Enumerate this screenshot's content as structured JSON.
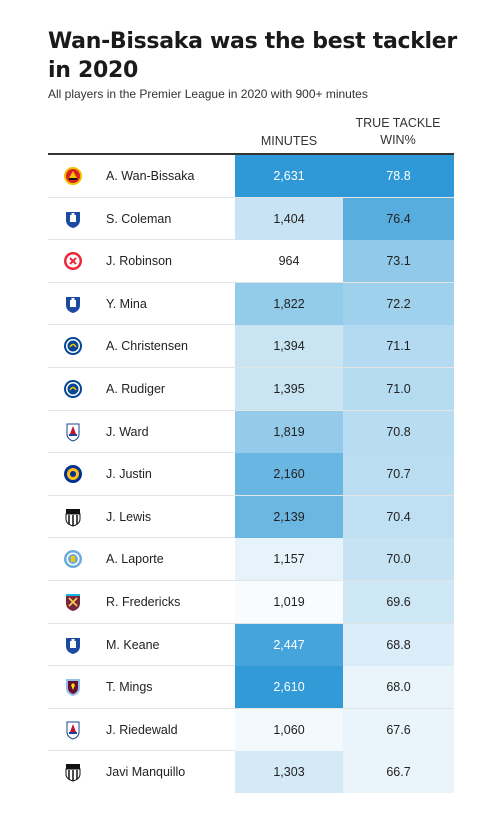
{
  "title": "Wan-Bissaka was the best tackler in 2020",
  "subtitle": "All players in the Premier League in 2020 with 900+ minutes",
  "columns": {
    "minutes": "MINUTES",
    "tackle_line1": "TRUE TACKLE",
    "tackle_line2": "WIN%"
  },
  "colors": {
    "scale_low": "#ffffff",
    "scale_high": "#2e99d6",
    "text_dark": "#222222",
    "text_light": "#ffffff"
  },
  "chart_data": {
    "type": "table",
    "title": "Wan-Bissaka was the best tackler in 2020",
    "subtitle": "All players in the Premier League in 2020 with 900+ minutes",
    "columns": [
      "",
      "MINUTES",
      "TRUE TACKLE WIN%"
    ],
    "minutes_range": [
      964,
      2631
    ],
    "tackle_range": [
      66.7,
      78.8
    ],
    "rows": [
      {
        "club_icon": "manchester-united-crest",
        "player": "A. Wan-Bissaka",
        "minutes": "2,631",
        "minutes_value": 2631,
        "tackle_win": "78.8",
        "tackle_value": 78.8
      },
      {
        "club_icon": "everton-crest",
        "player": "S. Coleman",
        "minutes": "1,404",
        "minutes_value": 1404,
        "tackle_win": "76.4",
        "tackle_value": 76.4
      },
      {
        "club_icon": "sheffield-united-crest",
        "player": "J. Robinson",
        "minutes": "964",
        "minutes_value": 964,
        "tackle_win": "73.1",
        "tackle_value": 73.1
      },
      {
        "club_icon": "everton-crest",
        "player": "Y. Mina",
        "minutes": "1,822",
        "minutes_value": 1822,
        "tackle_win": "72.2",
        "tackle_value": 72.2
      },
      {
        "club_icon": "chelsea-crest",
        "player": "A. Christensen",
        "minutes": "1,394",
        "minutes_value": 1394,
        "tackle_win": "71.1",
        "tackle_value": 71.1
      },
      {
        "club_icon": "chelsea-crest",
        "player": "A. Rudiger",
        "minutes": "1,395",
        "minutes_value": 1395,
        "tackle_win": "71.0",
        "tackle_value": 71.0
      },
      {
        "club_icon": "crystal-palace-crest",
        "player": "J. Ward",
        "minutes": "1,819",
        "minutes_value": 1819,
        "tackle_win": "70.8",
        "tackle_value": 70.8
      },
      {
        "club_icon": "leicester-city-crest",
        "player": "J. Justin",
        "minutes": "2,160",
        "minutes_value": 2160,
        "tackle_win": "70.7",
        "tackle_value": 70.7
      },
      {
        "club_icon": "newcastle-united-crest",
        "player": "J. Lewis",
        "minutes": "2,139",
        "minutes_value": 2139,
        "tackle_win": "70.4",
        "tackle_value": 70.4
      },
      {
        "club_icon": "manchester-city-crest",
        "player": "A. Laporte",
        "minutes": "1,157",
        "minutes_value": 1157,
        "tackle_win": "70.0",
        "tackle_value": 70.0
      },
      {
        "club_icon": "west-ham-crest",
        "player": "R. Fredericks",
        "minutes": "1,019",
        "minutes_value": 1019,
        "tackle_win": "69.6",
        "tackle_value": 69.6
      },
      {
        "club_icon": "everton-crest",
        "player": "M. Keane",
        "minutes": "2,447",
        "minutes_value": 2447,
        "tackle_win": "68.8",
        "tackle_value": 68.8
      },
      {
        "club_icon": "aston-villa-crest",
        "player": "T. Mings",
        "minutes": "2,610",
        "minutes_value": 2610,
        "tackle_win": "68.0",
        "tackle_value": 68.0
      },
      {
        "club_icon": "crystal-palace-crest",
        "player": "J. Riedewald",
        "minutes": "1,060",
        "minutes_value": 1060,
        "tackle_win": "67.6",
        "tackle_value": 67.6
      },
      {
        "club_icon": "newcastle-united-crest",
        "player": "Javi Manquillo",
        "minutes": "1,303",
        "minutes_value": 1303,
        "tackle_win": "66.7",
        "tackle_value": 66.7
      }
    ]
  }
}
